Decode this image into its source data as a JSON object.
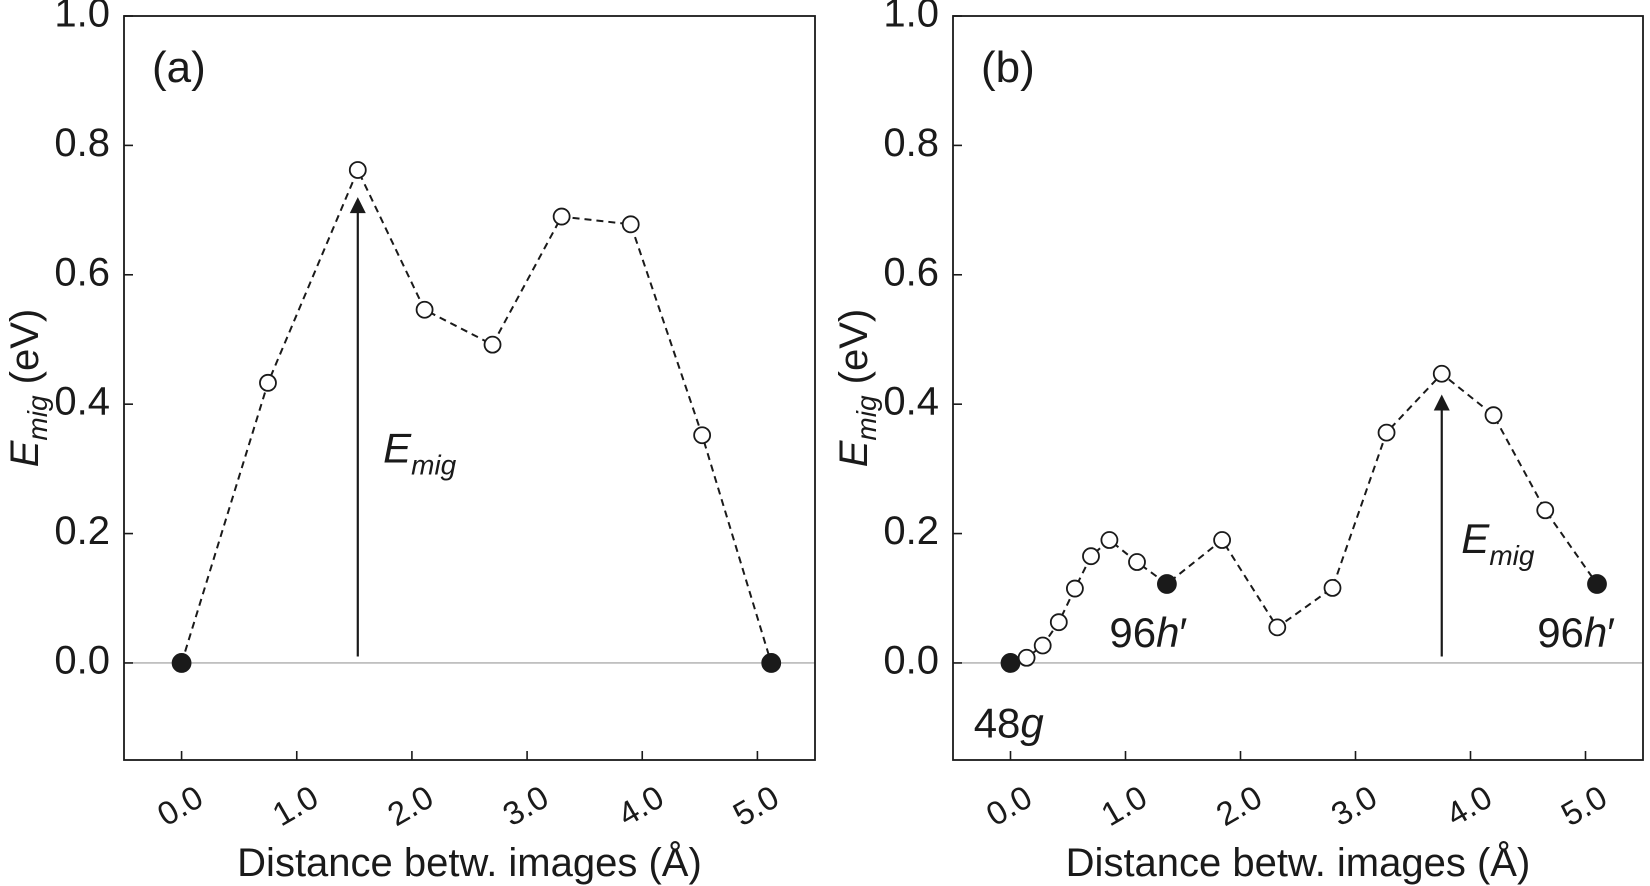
{
  "chart_data": [
    {
      "type": "line",
      "panel_label": "(a)",
      "xlabel": "Distance betw. images (Å)",
      "ylabel_main": "E",
      "ylabel_sub": "mig",
      "ylabel_unit": " (eV)",
      "xlim": [
        -0.5,
        5.5
      ],
      "ylim": [
        -0.15,
        1.0
      ],
      "xticks": [
        0.0,
        1.0,
        2.0,
        3.0,
        4.0,
        5.0
      ],
      "xtick_labels": [
        "0.0",
        "1.0",
        "2.0",
        "3.0",
        "4.0",
        "5.0"
      ],
      "yticks": [
        0.0,
        0.2,
        0.4,
        0.6,
        0.8,
        1.0
      ],
      "ytick_labels": [
        "0.0",
        "0.2",
        "0.4",
        "0.6",
        "0.8",
        "1.0"
      ],
      "grid": false,
      "zero_line": true,
      "x": [
        0.0,
        0.75,
        1.53,
        2.11,
        2.7,
        3.3,
        3.9,
        4.52,
        5.12
      ],
      "y": [
        0.0,
        0.433,
        0.762,
        0.546,
        0.492,
        0.69,
        0.678,
        0.352,
        0.0
      ],
      "marker_style": [
        "filled",
        "open",
        "open",
        "open",
        "open",
        "open",
        "open",
        "open",
        "filled"
      ],
      "arrow": {
        "x": 1.53,
        "y_from": 0.01,
        "y_to": 0.72
      },
      "annotations": [
        {
          "main": "E",
          "sub": "mig",
          "x": 1.75,
          "y": 0.31
        }
      ]
    },
    {
      "type": "line",
      "panel_label": "(b)",
      "xlabel": "Distance betw. images (Å)",
      "ylabel_main": "E",
      "ylabel_sub": "mig",
      "ylabel_unit": " (eV)",
      "xlim": [
        -0.5,
        5.5
      ],
      "ylim": [
        -0.15,
        1.0
      ],
      "xticks": [
        0.0,
        1.0,
        2.0,
        3.0,
        4.0,
        5.0
      ],
      "xtick_labels": [
        "0.0",
        "1.0",
        "2.0",
        "3.0",
        "4.0",
        "5.0"
      ],
      "yticks": [
        0.0,
        0.2,
        0.4,
        0.6,
        0.8,
        1.0
      ],
      "ytick_labels": [
        "0.0",
        "0.2",
        "0.4",
        "0.6",
        "0.8",
        "1.0"
      ],
      "grid": false,
      "zero_line": true,
      "x": [
        0.0,
        0.14,
        0.28,
        0.42,
        0.56,
        0.7,
        0.86,
        1.1,
        1.36,
        1.84,
        2.32,
        2.8,
        3.27,
        3.75,
        4.2,
        4.65,
        5.1
      ],
      "y": [
        0.0,
        0.008,
        0.027,
        0.063,
        0.115,
        0.165,
        0.19,
        0.156,
        0.122,
        0.19,
        0.055,
        0.116,
        0.356,
        0.447,
        0.383,
        0.236,
        0.122
      ],
      "marker_style": [
        "filled",
        "open",
        "open",
        "open",
        "open",
        "open",
        "open",
        "open",
        "filled",
        "open",
        "open",
        "open",
        "open",
        "open",
        "open",
        "open",
        "filled"
      ],
      "arrow": {
        "x": 3.75,
        "y_from": 0.01,
        "y_to": 0.415
      },
      "annotations": [
        {
          "main": "E",
          "sub": "mig",
          "x": 3.92,
          "y": 0.17
        },
        {
          "main": "48",
          "italic": "g",
          "prime": "",
          "x": -0.32,
          "y": -0.115
        },
        {
          "main": "96",
          "italic": "h",
          "prime": "′",
          "x": 0.86,
          "y": 0.025
        },
        {
          "main": "96",
          "italic": "h",
          "prime": "′",
          "x": 4.58,
          "y": 0.025
        }
      ]
    }
  ]
}
